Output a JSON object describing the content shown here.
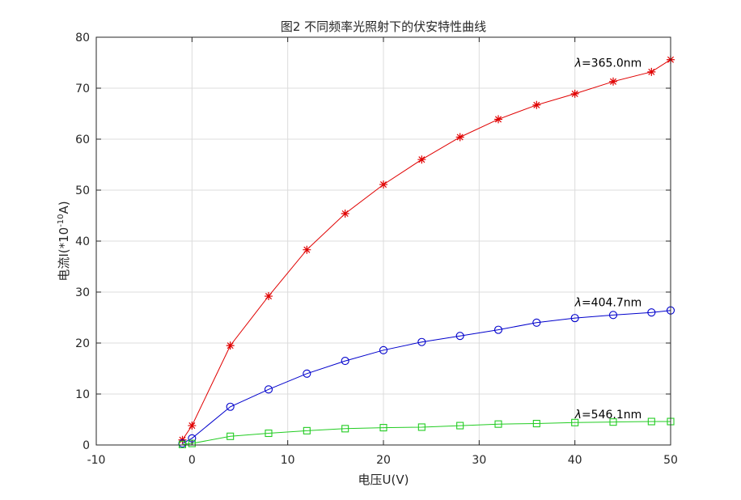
{
  "chart_data": {
    "type": "line",
    "title": "图2 不同频率光照射下的伏安特性曲线",
    "xlabel": "电压U(V)",
    "ylabel_main": "电流I(*10",
    "ylabel_exp": "-10",
    "ylabel_tail": "A)",
    "xlim": [
      -10,
      50
    ],
    "ylim": [
      0,
      80
    ],
    "xticks": [
      -10,
      0,
      10,
      20,
      30,
      40,
      50
    ],
    "yticks": [
      0,
      10,
      20,
      30,
      40,
      50,
      60,
      70,
      80
    ],
    "grid": true,
    "series": [
      {
        "color": "#e00000",
        "marker": "asterisk",
        "x": [
          -1,
          0,
          4,
          8,
          12,
          16,
          20,
          24,
          28,
          32,
          36,
          40,
          44,
          48,
          50
        ],
        "values": [
          1.0,
          3.8,
          19.5,
          29.2,
          38.3,
          45.4,
          51.1,
          56.0,
          60.4,
          63.9,
          66.7,
          68.9,
          71.3,
          73.2,
          75.6
        ]
      },
      {
        "color": "#0000cc",
        "marker": "circle",
        "x": [
          -1,
          0,
          4,
          8,
          12,
          16,
          20,
          24,
          28,
          32,
          36,
          40,
          44,
          48,
          50
        ],
        "values": [
          0.3,
          1.3,
          7.5,
          10.9,
          14.0,
          16.5,
          18.6,
          20.2,
          21.4,
          22.6,
          24.0,
          24.9,
          25.5,
          26.0,
          26.4
        ]
      },
      {
        "color": "#22cc22",
        "marker": "square",
        "x": [
          -1,
          0,
          4,
          8,
          12,
          16,
          20,
          24,
          28,
          32,
          36,
          40,
          44,
          48,
          50
        ],
        "values": [
          0.1,
          0.3,
          1.7,
          2.3,
          2.8,
          3.2,
          3.4,
          3.5,
          3.8,
          4.1,
          4.2,
          4.4,
          4.5,
          4.6,
          4.6
        ]
      }
    ],
    "annotations": [
      {
        "symbol": "λ",
        "text": "=365.0nm",
        "x": 40,
        "y": 75
      },
      {
        "symbol": "λ",
        "text": "=404.7nm",
        "x": 40,
        "y": 28
      },
      {
        "symbol": "λ",
        "text": "=546.1nm",
        "x": 40,
        "y": 6
      }
    ]
  }
}
